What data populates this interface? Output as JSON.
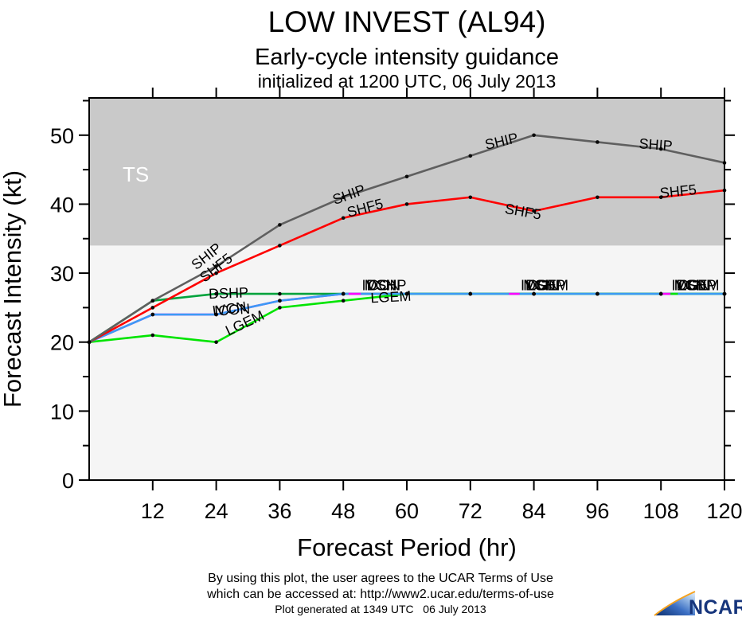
{
  "header": {
    "title": "LOW INVEST (AL94)",
    "subtitle": "Early-cycle intensity guidance",
    "init_line": "initialized at 1200 UTC, 06 July 2013"
  },
  "chart_data": {
    "type": "line",
    "title": "LOW INVEST (AL94)",
    "xlabel": "Forecast Period (hr)",
    "ylabel": "Forecast Intensity (kt)",
    "xlim": [
      0,
      120
    ],
    "ylim": [
      0,
      55.4
    ],
    "x_ticks": [
      12,
      24,
      36,
      48,
      60,
      72,
      84,
      96,
      108,
      120
    ],
    "y_ticks_major": [
      0,
      10,
      20,
      30,
      40,
      50
    ],
    "y_ticks_minor": [
      5,
      15,
      25,
      35,
      45,
      55
    ],
    "x": [
      0,
      12,
      24,
      36,
      48,
      60,
      72,
      84,
      96,
      108,
      120
    ],
    "ts_threshold": 34,
    "ts_label": "TS",
    "region_colors": {
      "ts_zone": "#c9c9c9",
      "below_zone": "#f5f5f5"
    },
    "series": [
      {
        "name": "IVCN",
        "color": "#ff00ff",
        "values": [
          20,
          24,
          24,
          26,
          27,
          27,
          27,
          27,
          27,
          27,
          27
        ]
      },
      {
        "name": "DSHP",
        "color": "#00a33c",
        "values": [
          20,
          26,
          27,
          27,
          27,
          27,
          27,
          27,
          27,
          27,
          27
        ]
      },
      {
        "name": "LGEM",
        "color": "#00e400",
        "values": [
          20,
          21,
          20,
          25,
          26,
          27,
          27,
          27,
          27,
          27,
          27
        ]
      },
      {
        "name": "ICON",
        "color": "#3c9bf5",
        "values": [
          20,
          24,
          24,
          26,
          27,
          27,
          27,
          27,
          27,
          27,
          27
        ]
      },
      {
        "name": "SHF5",
        "color": "#fe0000",
        "values": [
          20,
          25,
          30,
          34,
          38,
          40,
          41,
          39,
          41,
          41,
          42
        ]
      },
      {
        "name": "SHIP",
        "color": "#5f5f5f",
        "values": [
          20,
          26,
          31,
          37,
          41,
          44,
          47,
          50,
          49,
          48,
          46
        ]
      }
    ],
    "overlap_slivers": [
      {
        "color": "#ff00ff",
        "from": 49.0,
        "to": 51.3,
        "value": 27
      },
      {
        "color": "#ff00ff",
        "from": 79.3,
        "to": 81.3,
        "value": 27
      },
      {
        "color": "#ff00ff",
        "from": 108.3,
        "to": 109.8,
        "value": 27
      },
      {
        "color": "#00e400",
        "from": 109.8,
        "to": 111.2,
        "value": 27
      }
    ],
    "line_labels": [
      {
        "text": "SHIP",
        "hr": 20.2,
        "value": 30.4,
        "rot": -38
      },
      {
        "text": "SHF5",
        "hr": 21.8,
        "value": 28.6,
        "rot": -38
      },
      {
        "text": "SHIP",
        "hr": 46.4,
        "value": 39.9,
        "rot": -20
      },
      {
        "text": "SHF5",
        "hr": 49.0,
        "value": 38.1,
        "rot": -15
      },
      {
        "text": "SHIP",
        "hr": 75.0,
        "value": 47.9,
        "rot": -13
      },
      {
        "text": "SHF5",
        "hr": 78.4,
        "value": 38.7,
        "rot": 10
      },
      {
        "text": "SHIP",
        "hr": 103.8,
        "value": 48.1,
        "rot": 4
      },
      {
        "text": "SHF5",
        "hr": 107.9,
        "value": 40.9,
        "rot": -6
      },
      {
        "text": "DSHP",
        "hr": 22.6,
        "value": 26.3,
        "rot": -2
      },
      {
        "text": "IVCN",
        "hr": 23.4,
        "value": 23.8,
        "rot": -8
      },
      {
        "text": "ICON",
        "hr": 23.7,
        "value": 23.8,
        "rot": -4
      },
      {
        "text": "LGEM",
        "hr": 26.3,
        "value": 20.9,
        "rot": -25
      },
      {
        "text": "LGEM",
        "hr": 53.2,
        "value": 25.7,
        "rot": -3
      }
    ],
    "label_clusters": [
      {
        "hr": 51.5,
        "value": 27.5,
        "texts": [
          "IVCN",
          "ICON",
          "DSHP"
        ]
      },
      {
        "hr": 81.5,
        "value": 27.5,
        "texts": [
          "IVCN",
          "ICON",
          "DSHP",
          "LGEM"
        ]
      },
      {
        "hr": 110.0,
        "value": 27.5,
        "texts": [
          "IVCN",
          "ICON",
          "DSHP",
          "LGEM"
        ]
      }
    ]
  },
  "footer": {
    "terms_line1": "By using this plot, the user agrees to the UCAR Terms of Use",
    "terms_line2": "which can be accessed at: http://www2.ucar.edu/terms-of-use",
    "generated": "Plot generated at 1349 UTC   06 July 2013"
  },
  "logo": {
    "text": "NCAR"
  }
}
